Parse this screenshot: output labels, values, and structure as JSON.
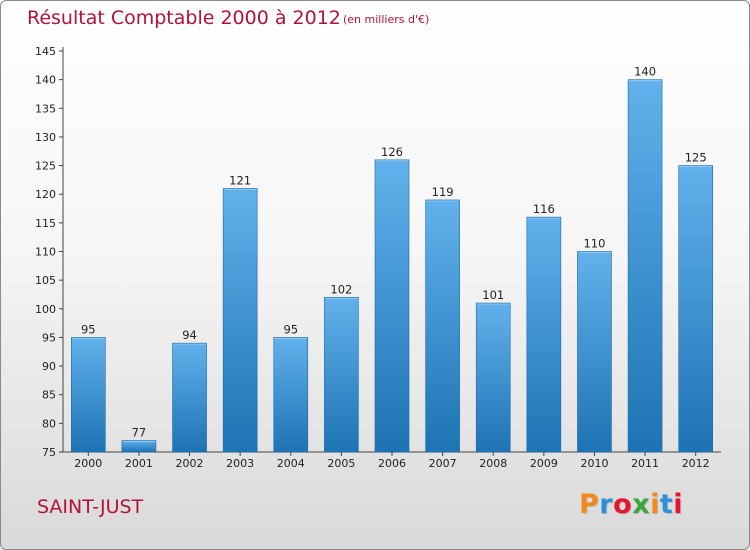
{
  "header": {
    "title": "Résultat Comptable 2000 à 2012",
    "subtitle": "(en milliers d'€)"
  },
  "footer": {
    "commune": "SAINT-JUST",
    "logo_text": "Proxiti",
    "logo_colors": [
      "#f08a1c",
      "#2d8fd6",
      "#e3142d",
      "#3aa83a",
      "#f08a1c",
      "#2d8fd6",
      "#e3142d"
    ]
  },
  "colors": {
    "bar_light": "#62b1ec",
    "bar_dark": "#1d73b4",
    "axis": "#444444",
    "title": "#b2123a"
  },
  "chart_data": {
    "type": "bar",
    "title": "Résultat Comptable 2000 à 2012",
    "subtitle": "(en milliers d'€)",
    "xlabel": "",
    "ylabel": "",
    "categories": [
      "2000",
      "2001",
      "2002",
      "2003",
      "2004",
      "2005",
      "2006",
      "2007",
      "2008",
      "2009",
      "2010",
      "2011",
      "2012"
    ],
    "values": [
      95,
      77,
      94,
      121,
      95,
      102,
      126,
      119,
      101,
      116,
      110,
      140,
      125
    ],
    "ylim": [
      75,
      145
    ],
    "yticks": [
      75,
      80,
      85,
      90,
      95,
      100,
      105,
      110,
      115,
      120,
      125,
      130,
      135,
      140,
      145
    ],
    "grid": false
  }
}
